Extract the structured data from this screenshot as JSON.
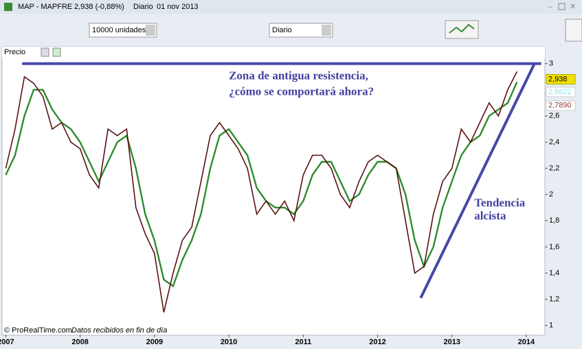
{
  "window": {
    "symbol": "MAP - MAPFRE",
    "quote": "2,938 (-0,88%)",
    "period": "Diario",
    "date": "01 nov 2013"
  },
  "toolbar": {
    "quantity": "10000 unidades",
    "timeframe": "Diario"
  },
  "panel": {
    "label": "Precio"
  },
  "footer": {
    "copyright": "© ProRealTime.com",
    "note": "Datos recibidos en fin de día"
  },
  "chart_data": {
    "type": "line",
    "x": [
      2007.0,
      2007.125,
      2007.25,
      2007.375,
      2007.5,
      2007.625,
      2007.75,
      2007.875,
      2008.0,
      2008.125,
      2008.25,
      2008.375,
      2008.5,
      2008.625,
      2008.75,
      2008.875,
      2009.0,
      2009.125,
      2009.25,
      2009.375,
      2009.5,
      2009.625,
      2009.75,
      2009.875,
      2010.0,
      2010.125,
      2010.25,
      2010.375,
      2010.5,
      2010.625,
      2010.75,
      2010.875,
      2011.0,
      2011.125,
      2011.25,
      2011.375,
      2011.5,
      2011.625,
      2011.75,
      2011.875,
      2012.0,
      2012.125,
      2012.25,
      2012.375,
      2012.5,
      2012.625,
      2012.75,
      2012.875,
      2013.0,
      2013.125,
      2013.25,
      2013.375,
      2013.5,
      2013.625,
      2013.75,
      2013.875
    ],
    "series": [
      {
        "color": "#2e8b2e",
        "values": [
          2.15,
          2.3,
          2.6,
          2.8,
          2.8,
          2.65,
          2.55,
          2.5,
          2.4,
          2.25,
          2.1,
          2.25,
          2.4,
          2.45,
          2.2,
          1.85,
          1.65,
          1.35,
          1.3,
          1.5,
          1.65,
          1.85,
          2.2,
          2.45,
          2.5,
          2.4,
          2.3,
          2.05,
          1.95,
          1.9,
          1.9,
          1.85,
          1.95,
          2.15,
          2.25,
          2.25,
          2.1,
          1.95,
          2.0,
          2.15,
          2.25,
          2.25,
          2.2,
          2.0,
          1.65,
          1.45,
          1.6,
          1.9,
          2.1,
          2.3,
          2.4,
          2.45,
          2.6,
          2.65,
          2.7,
          2.86
        ]
      },
      {
        "color": "#5a1010",
        "values": [
          2.2,
          2.5,
          2.9,
          2.85,
          2.75,
          2.5,
          2.55,
          2.4,
          2.35,
          2.15,
          2.05,
          2.5,
          2.45,
          2.5,
          1.9,
          1.7,
          1.55,
          1.1,
          1.4,
          1.65,
          1.75,
          2.1,
          2.45,
          2.55,
          2.45,
          2.35,
          2.2,
          1.85,
          1.95,
          1.85,
          1.95,
          1.8,
          2.15,
          2.3,
          2.3,
          2.2,
          2.0,
          1.9,
          2.1,
          2.25,
          2.3,
          2.25,
          2.2,
          1.8,
          1.4,
          1.45,
          1.85,
          2.1,
          2.2,
          2.5,
          2.4,
          2.55,
          2.7,
          2.6,
          2.8,
          2.94
        ]
      }
    ],
    "xlim": [
      2006.95,
      2014.25
    ],
    "xticks": [
      2007,
      2008,
      2009,
      2010,
      2011,
      2012,
      2013,
      2014
    ],
    "ylim": [
      0.93,
      3.04
    ],
    "yticks": [
      1,
      {
        "value": 1.2,
        "label": "1,2"
      },
      {
        "value": 1.4,
        "label": "1,4"
      },
      {
        "value": 1.6,
        "label": "1,6"
      },
      {
        "value": 1.8,
        "label": "1,8"
      },
      2,
      {
        "value": 2.2,
        "label": "2,2"
      },
      {
        "value": 2.4,
        "label": "2,4"
      },
      {
        "value": 2.6,
        "label": "2,6"
      },
      3
    ],
    "price_tags": [
      {
        "value": 2.938,
        "label": "2,938",
        "color": "#f2e200"
      },
      {
        "value": 2.8622,
        "label": "2,8622",
        "color": "#8ee8ee"
      },
      {
        "value": 2.789,
        "label": "2,7890",
        "color": "#8b3a3a"
      }
    ],
    "trend_lines": [
      {
        "x": [
          2007.22,
          2014.2
        ],
        "y": [
          3,
          3
        ]
      },
      {
        "x": [
          2012.58,
          2014.11
        ],
        "y": [
          1.21,
          3
        ]
      }
    ],
    "annotations": [
      {
        "text": "Zona de antigua resistencia,",
        "x": 2010.0,
        "y": 2.9
      },
      {
        "text": "¿cómo se comportará ahora?",
        "x": 2010.0,
        "y": 2.78
      },
      {
        "text": "Tendencia",
        "x": 2013.3,
        "y": 1.93
      },
      {
        "text": "alcista",
        "x": 2013.3,
        "y": 1.83
      }
    ],
    "line_color": "#4747a8"
  }
}
